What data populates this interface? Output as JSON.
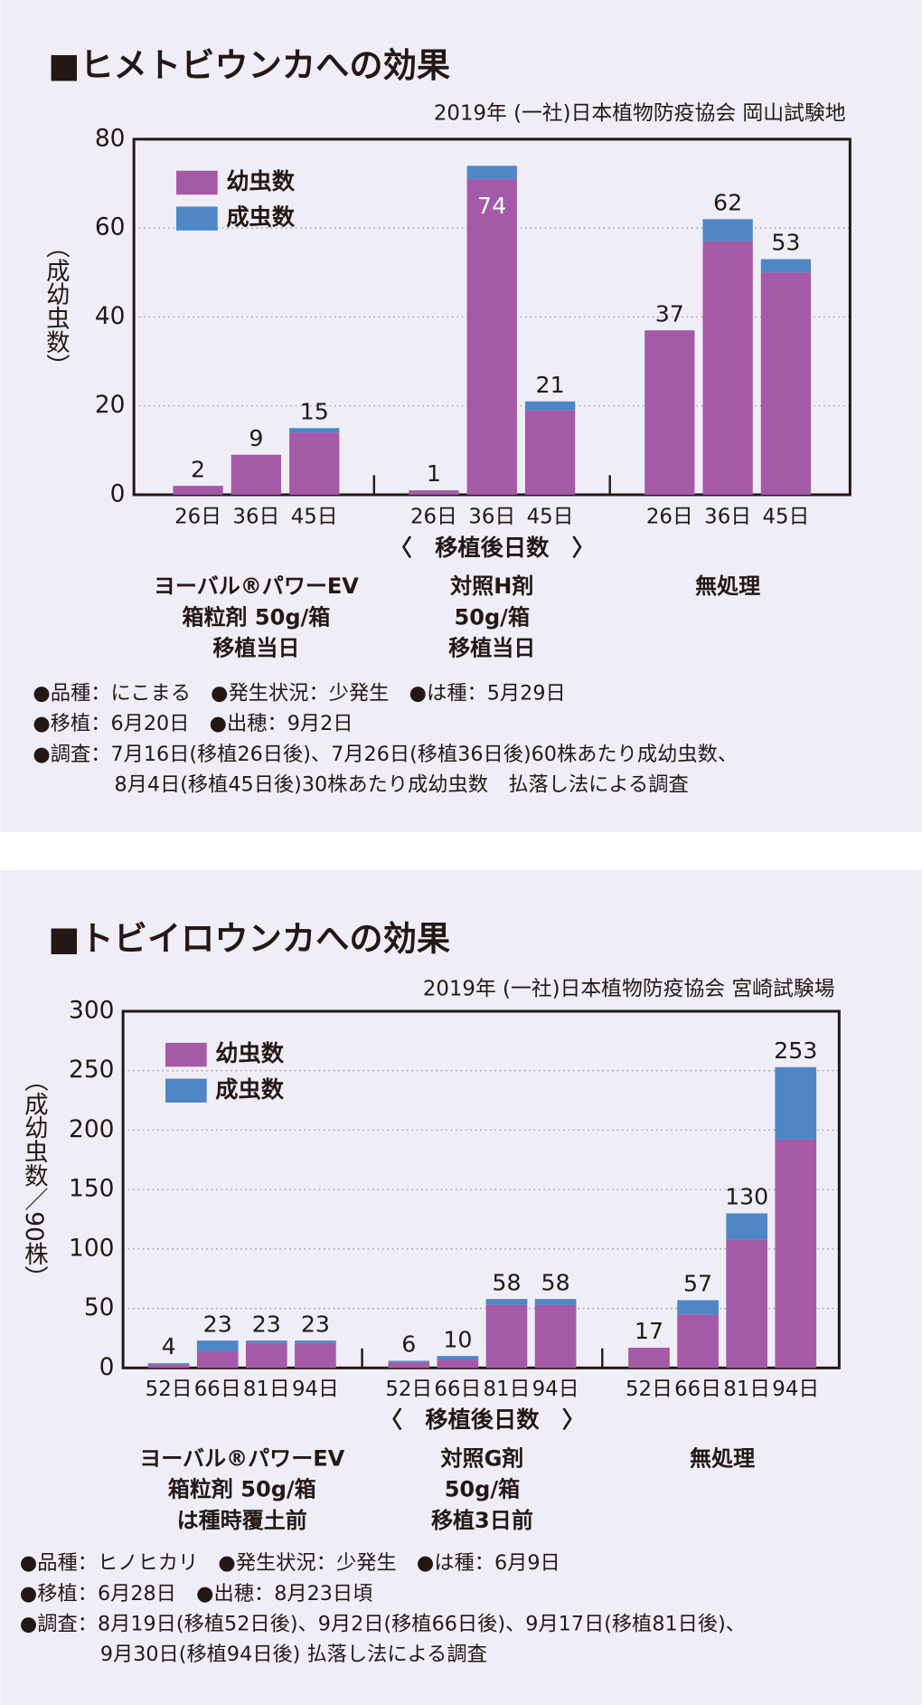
{
  "chart_data": [
    {
      "type": "bar",
      "stacked": true,
      "title": "■ヒメトビウンカへの効果",
      "subtitle": "2019年 (一社)日本植物防疫協会 岡山試験地",
      "y_label": "（成幼虫数）",
      "x_label": "〈　移植後日数　〉",
      "categories": [
        "26日",
        "36日",
        "45日",
        "26日",
        "36日",
        "45日",
        "26日",
        "36日",
        "45日"
      ],
      "groups": [
        {
          "lines": [
            "ヨーバル®パワーEV",
            "箱粒剤 50g/箱",
            "移植当日"
          ]
        },
        {
          "lines": [
            "対照H剤",
            "50g/箱",
            "移植当日"
          ]
        },
        {
          "lines": [
            "無処理"
          ]
        }
      ],
      "series": [
        {
          "name": "幼虫数",
          "color": "#a55aa8",
          "values": [
            2,
            9,
            14,
            1,
            71,
            19,
            37,
            57,
            50
          ]
        },
        {
          "name": "成虫数",
          "color": "#4f86c6",
          "values": [
            0,
            0,
            1,
            0,
            3,
            2,
            0,
            5,
            3
          ]
        }
      ],
      "totals": [
        2,
        9,
        15,
        1,
        74,
        21,
        37,
        62,
        53
      ],
      "ylim": [
        0,
        80
      ],
      "yticks": [
        0,
        20,
        40,
        60,
        80
      ],
      "grid": true,
      "notes": [
        "●品種：にこまる　●発生状況：少発生　●は種：5月29日",
        "●移植：6月20日　●出穂：9月2日",
        "●調査：7月16日(移植26日後)、7月26日(移植36日後)60株あたり成幼虫数、",
        "8月4日(移植45日後)30株あたり成幼虫数　払落し法による調査"
      ]
    },
    {
      "type": "bar",
      "stacked": true,
      "title": "■トビイロウンカへの効果",
      "subtitle": "2019年 (一社)日本植物防疫協会 宮崎試験場",
      "y_label": "（成幼虫数／90株）",
      "x_label": "〈　移植後日数　〉",
      "categories": [
        "52日",
        "66日",
        "81日",
        "94日",
        "52日",
        "66日",
        "81日",
        "94日",
        "52日",
        "66日",
        "81日",
        "94日"
      ],
      "groups": [
        {
          "lines": [
            "ヨーバル®パワーEV",
            "箱粒剤 50g/箱",
            "は種時覆土前"
          ]
        },
        {
          "lines": [
            "対照G剤",
            "50g/箱",
            "移植3日前"
          ]
        },
        {
          "lines": [
            "無処理"
          ]
        }
      ],
      "series": [
        {
          "name": "幼虫数",
          "color": "#a55aa8",
          "values": [
            3,
            14,
            21,
            21,
            5,
            7,
            53,
            53,
            17,
            45,
            108,
            192
          ]
        },
        {
          "name": "成虫数",
          "color": "#4f86c6",
          "values": [
            1,
            9,
            2,
            2,
            1,
            3,
            5,
            5,
            0,
            12,
            22,
            61
          ]
        }
      ],
      "totals": [
        4,
        23,
        23,
        23,
        6,
        10,
        58,
        58,
        17,
        57,
        130,
        253
      ],
      "ylim": [
        0,
        300
      ],
      "yticks": [
        0,
        50,
        100,
        150,
        200,
        250,
        300
      ],
      "grid": true,
      "notes": [
        "●品種：ヒノヒカリ　●発生状況：少発生　●は種：6月9日",
        "●移植：6月28日　●出穂：8月23日頃",
        "●調査：8月19日(移植52日後)、9月2日(移植66日後)、9月17日(移植81日後)、",
        "9月30日(移植94日後) 払落し法による調査"
      ]
    }
  ]
}
